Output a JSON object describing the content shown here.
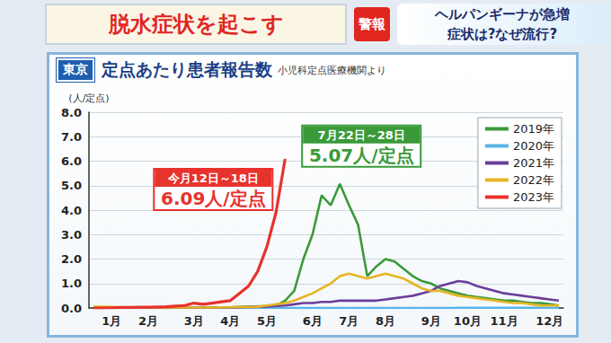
{
  "banner": {
    "left": "脱水症状を起こす",
    "badge": "警報",
    "right_line1": "ヘルパンギーナが急増",
    "right_line2": "症状は?なぜ流行?"
  },
  "chart_data": {
    "type": "line",
    "title": "定点あたり患者報告数",
    "title_tag": "東京",
    "subtitle": "小児科定点医療機関より",
    "y_label": "(人/定点)",
    "categories": [
      null,
      null,
      "1月",
      null,
      null,
      null,
      "2月",
      null,
      null,
      null,
      null,
      "3月",
      null,
      null,
      null,
      "4月",
      null,
      null,
      null,
      "5月",
      null,
      null,
      null,
      null,
      "6月",
      null,
      null,
      null,
      "7月",
      null,
      null,
      null,
      "8月",
      null,
      null,
      null,
      null,
      "9月",
      null,
      null,
      null,
      "10月",
      null,
      null,
      null,
      "11月",
      null,
      null,
      null,
      null,
      "12月",
      null
    ],
    "ylim": [
      0,
      8
    ],
    "yticks": [
      {
        "value": 0,
        "label": "0.0"
      },
      {
        "value": 1,
        "label": "1.0"
      },
      {
        "value": 2,
        "label": "2.0"
      },
      {
        "value": 3,
        "label": "3.0"
      },
      {
        "value": 4,
        "label": "4.0"
      },
      {
        "value": 5,
        "label": "5.0"
      },
      {
        "value": 6,
        "label": "6.0"
      },
      {
        "value": 7,
        "label": "7.0"
      },
      {
        "value": 8,
        "label": "8.0"
      }
    ],
    "grid": true,
    "legend": "upper right",
    "marker": "none",
    "series": [
      {
        "name": "2019年",
        "color": "#3a9a3a",
        "values": [
          0.0,
          0.0,
          0.0,
          0.0,
          0.0,
          0.0,
          0.0,
          0.0,
          0.0,
          0.01,
          0.01,
          0.02,
          0.02,
          0.02,
          0.03,
          0.03,
          0.04,
          0.05,
          0.06,
          0.08,
          0.1,
          0.3,
          0.7,
          2.0,
          3.0,
          4.6,
          4.2,
          5.07,
          4.2,
          3.4,
          1.3,
          1.7,
          2.0,
          1.9,
          1.6,
          1.3,
          1.1,
          1.0,
          0.8,
          0.7,
          0.6,
          0.5,
          0.45,
          0.4,
          0.35,
          0.3,
          0.3,
          0.25,
          0.2,
          0.2,
          0.15,
          0.1
        ]
      },
      {
        "name": "2020年",
        "color": "#5ab4e8",
        "values": [
          0.03,
          0.03,
          0.02,
          0.02,
          0.02,
          0.02,
          0.02,
          0.02,
          0.02,
          0.01,
          0.01,
          0.01,
          0.01,
          0.01,
          0.01,
          0.01,
          0.01,
          0.01,
          0.01,
          0.01,
          0.0,
          0.0,
          0.0,
          0.0,
          0.0,
          0.0,
          0.0,
          0.0,
          0.0,
          0.0,
          0.0,
          0.0,
          0.0,
          0.0,
          0.0,
          0.0,
          0.0,
          0.0,
          0.0,
          0.0,
          0.01,
          0.01,
          0.01,
          0.01,
          0.01,
          0.01,
          0.01,
          0.01,
          0.01,
          0.01,
          0.01,
          0.01
        ]
      },
      {
        "name": "2021年",
        "color": "#6a3d9a",
        "values": [
          0.03,
          0.03,
          0.02,
          0.02,
          0.02,
          0.02,
          0.01,
          0.01,
          0.01,
          0.01,
          0.01,
          0.01,
          0.01,
          0.01,
          0.02,
          0.02,
          0.03,
          0.04,
          0.05,
          0.06,
          0.08,
          0.1,
          0.15,
          0.2,
          0.2,
          0.25,
          0.25,
          0.3,
          0.3,
          0.3,
          0.3,
          0.3,
          0.35,
          0.4,
          0.45,
          0.5,
          0.6,
          0.7,
          0.9,
          1.0,
          1.1,
          1.05,
          0.9,
          0.8,
          0.7,
          0.6,
          0.55,
          0.5,
          0.45,
          0.4,
          0.35,
          0.3
        ]
      },
      {
        "name": "2022年",
        "color": "#e6b422",
        "values": [
          0.05,
          0.05,
          0.04,
          0.03,
          0.03,
          0.02,
          0.02,
          0.02,
          0.02,
          0.02,
          0.02,
          0.02,
          0.02,
          0.02,
          0.03,
          0.03,
          0.04,
          0.04,
          0.05,
          0.1,
          0.15,
          0.2,
          0.3,
          0.45,
          0.6,
          0.8,
          1.0,
          1.3,
          1.4,
          1.3,
          1.2,
          1.3,
          1.4,
          1.3,
          1.2,
          1.0,
          0.8,
          0.7,
          0.7,
          0.6,
          0.5,
          0.45,
          0.4,
          0.35,
          0.3,
          0.25,
          0.2,
          0.2,
          0.15,
          0.1,
          0.1,
          0.1
        ]
      },
      {
        "name": "2023年",
        "color": "#e8322c",
        "values": [
          0.0,
          0.0,
          0.01,
          0.02,
          0.02,
          0.03,
          0.03,
          0.04,
          0.05,
          0.08,
          0.1,
          0.2,
          0.15,
          0.2,
          0.25,
          0.3,
          0.6,
          0.9,
          1.5,
          2.5,
          3.9,
          6.09,
          null,
          null,
          null,
          null,
          null,
          null,
          null,
          null,
          null,
          null,
          null,
          null,
          null,
          null,
          null,
          null,
          null,
          null,
          null,
          null,
          null,
          null,
          null,
          null,
          null,
          null,
          null,
          null,
          null,
          null
        ]
      }
    ],
    "annotations": [
      {
        "series": "2023年",
        "index": 21,
        "value": 6.09,
        "period": "今月12日～18日",
        "label": "6.09人/定点",
        "color": "#e8322c"
      },
      {
        "series": "2019年",
        "index": 27,
        "value": 5.07,
        "period": "7月22日～28日",
        "label": "5.07人/定点",
        "color": "#3a9a3a"
      }
    ]
  }
}
